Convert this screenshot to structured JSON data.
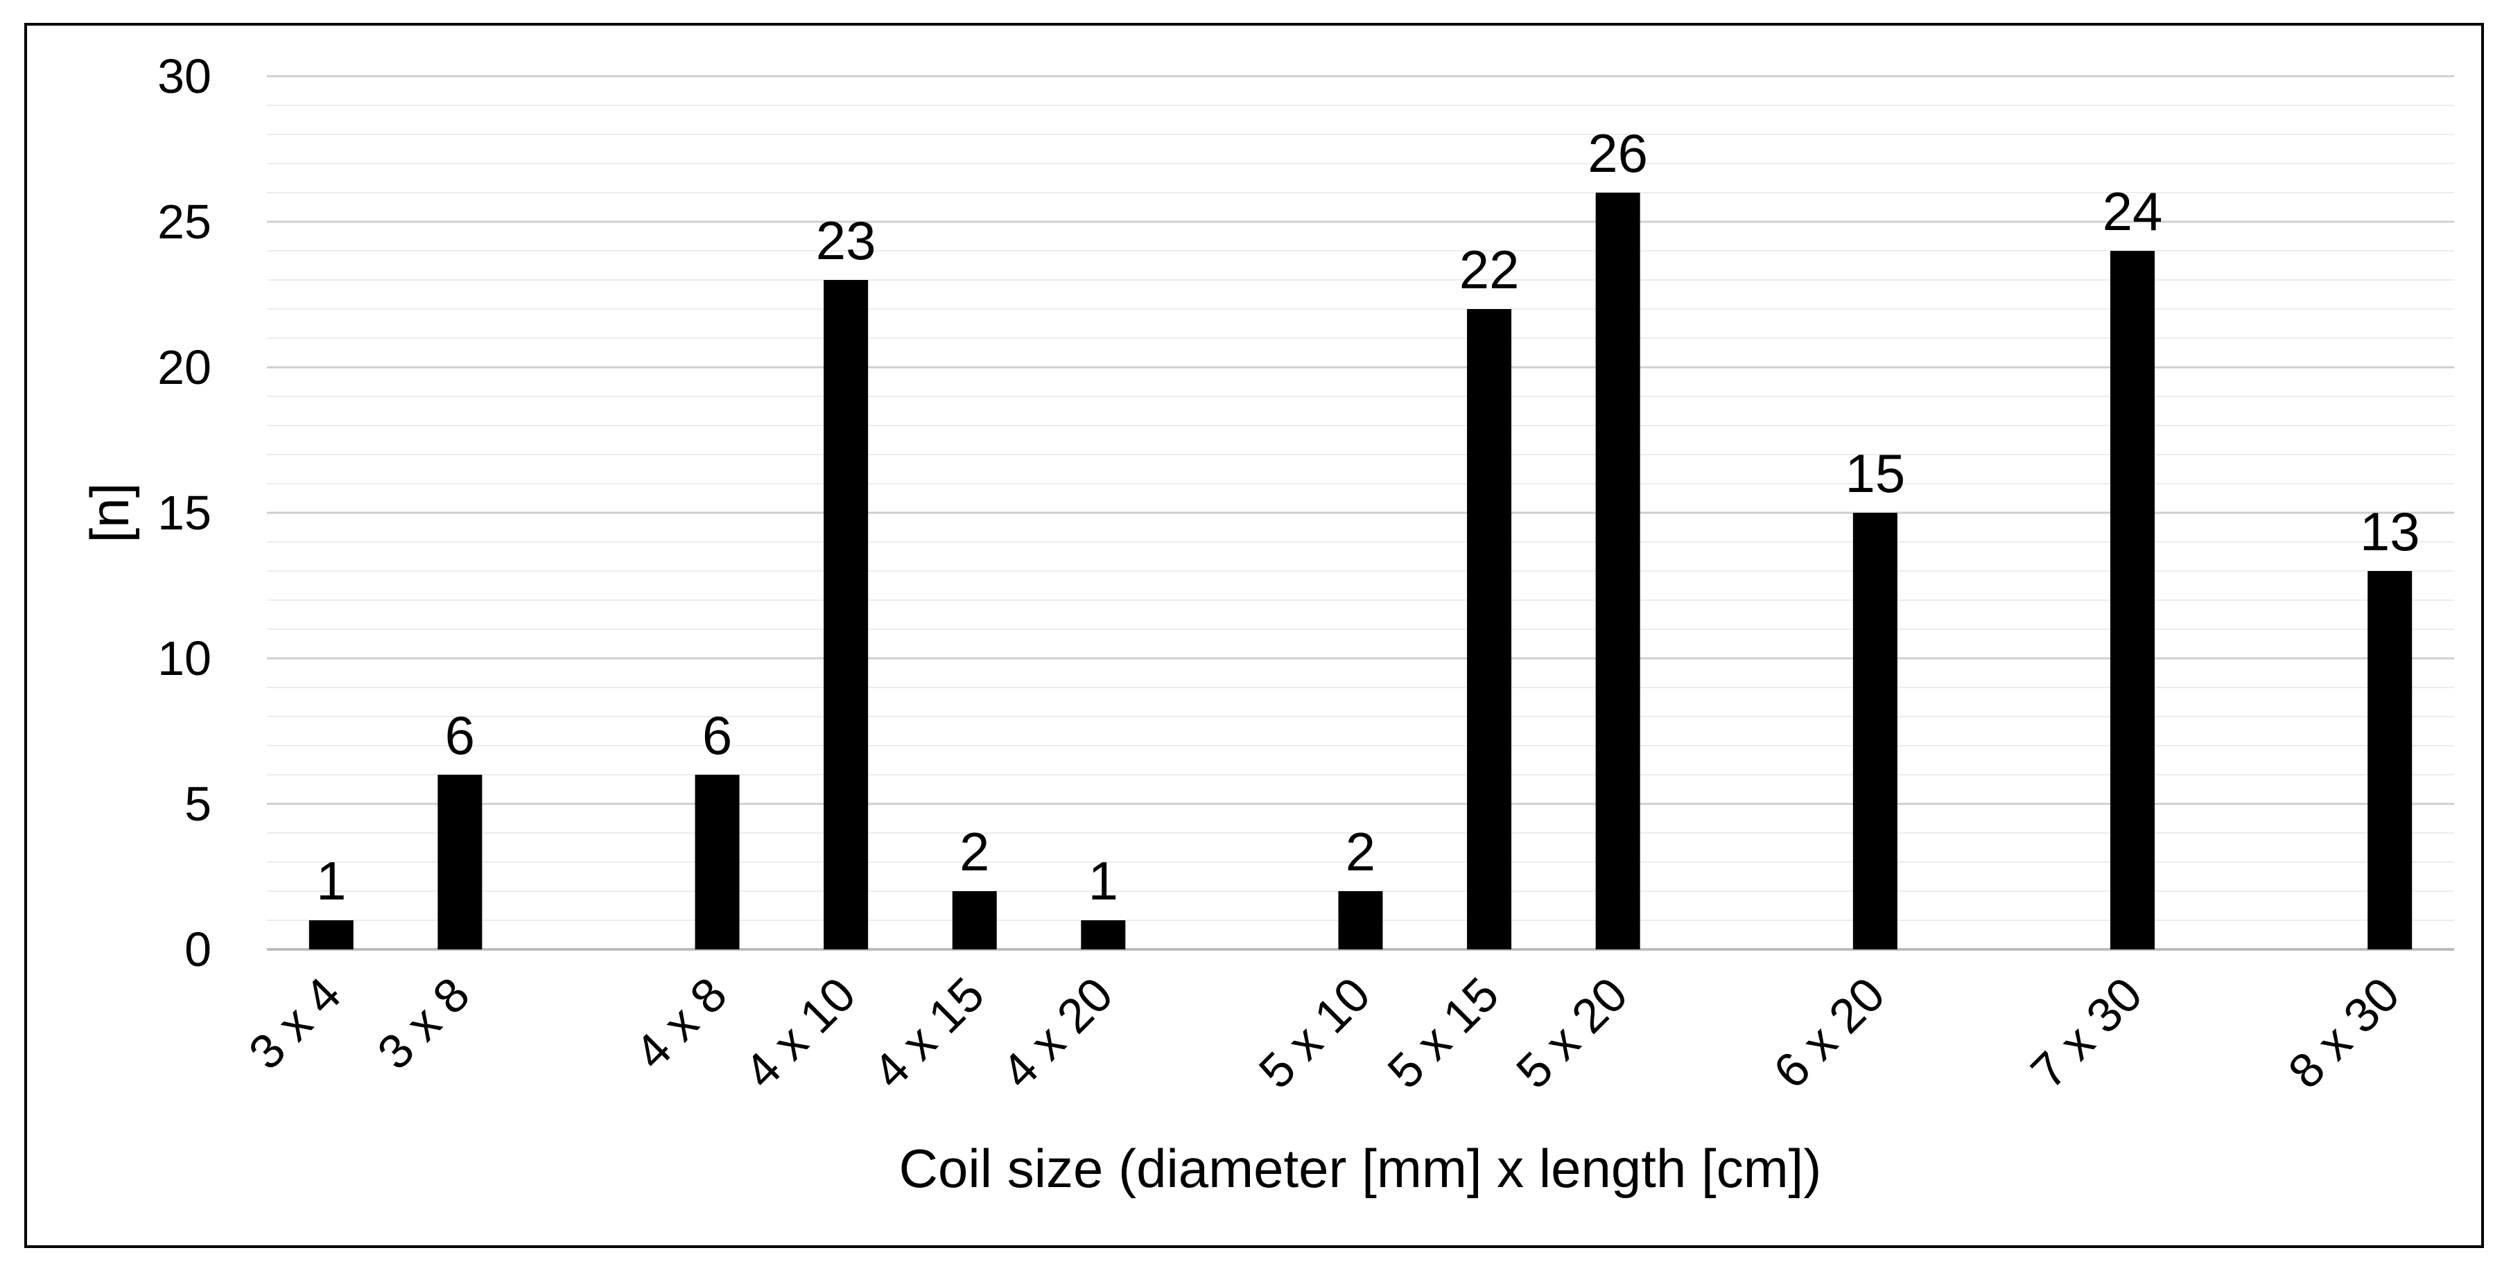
{
  "chart_data": {
    "type": "bar",
    "title": "",
    "xlabel": "Coil size (diameter [mm] x length [cm])",
    "ylabel": "[n]",
    "ylim": [
      0,
      30
    ],
    "yticks": [
      0,
      5,
      10,
      15,
      20,
      25,
      30
    ],
    "minor_grid_step": 1,
    "grid": true,
    "legend": "none",
    "bar_color": "#000000",
    "slots": [
      "3 x 4",
      "3 x 8",
      "",
      "4 x 8",
      "4 x 10",
      "4 x 15",
      "4 x 20",
      "",
      "5 x 10",
      "5 x 15",
      "5 x 20",
      "",
      "6 x 20",
      "",
      "7 x 30",
      "",
      "8 x 30"
    ],
    "values": [
      1,
      6,
      null,
      6,
      23,
      2,
      1,
      null,
      2,
      22,
      26,
      null,
      15,
      null,
      24,
      null,
      13
    ]
  }
}
